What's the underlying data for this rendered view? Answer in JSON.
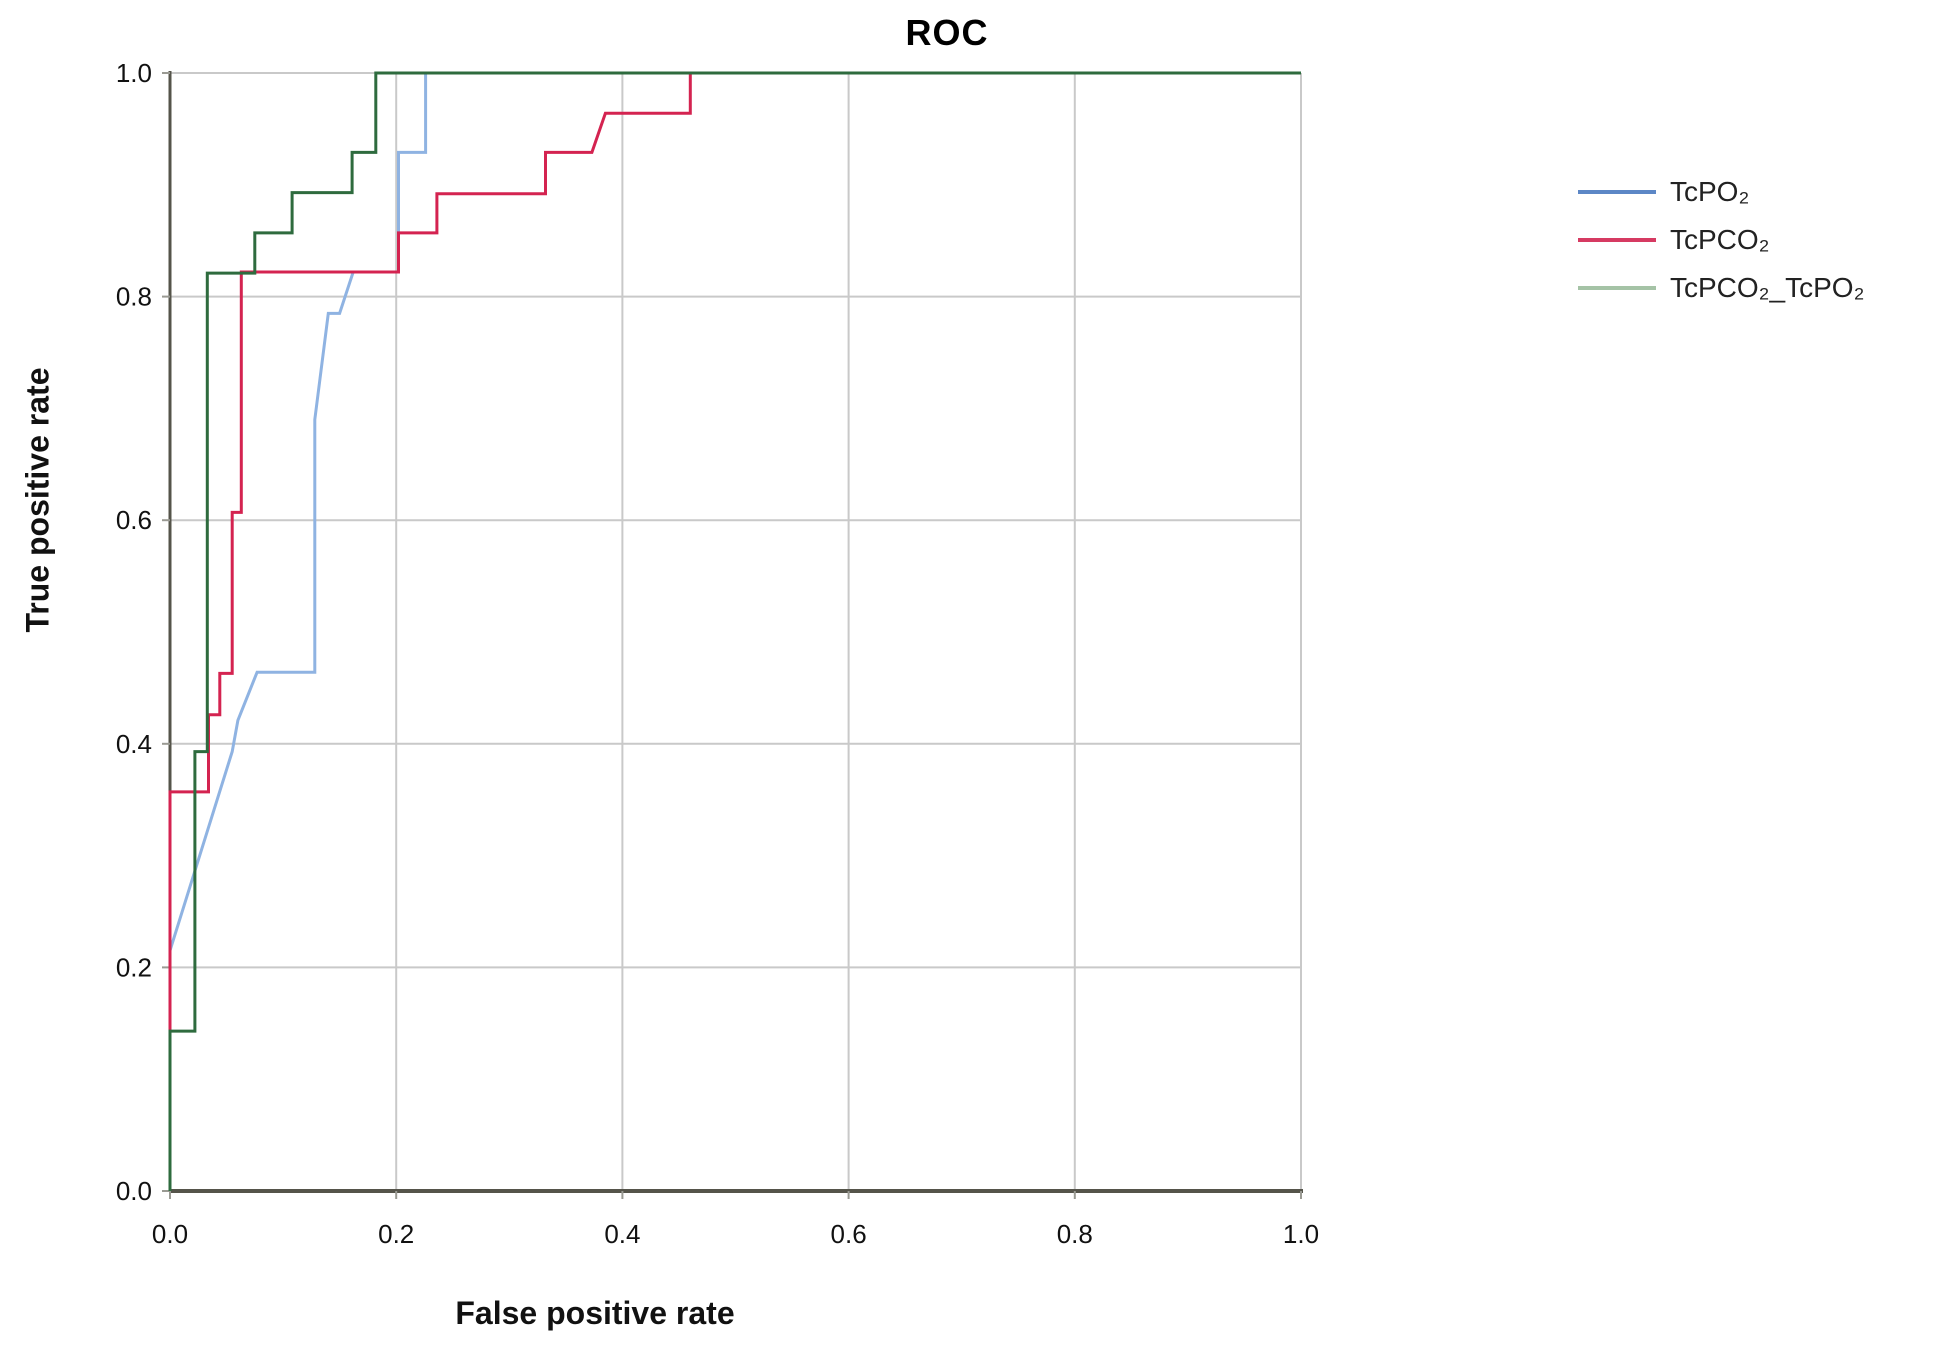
{
  "chart_data": {
    "type": "line",
    "subtype": "roc-step-curves",
    "title": "ROC",
    "xlabel": "False positive rate",
    "ylabel": "True positive rate",
    "xlim": [
      0.0,
      1.0
    ],
    "ylim": [
      0.0,
      1.0
    ],
    "xticks": [
      "0.0",
      "0.2",
      "0.4",
      "0.6",
      "0.8",
      "1.0"
    ],
    "yticks": [
      "0.0",
      "0.2",
      "0.4",
      "0.6",
      "0.8",
      "1.0"
    ],
    "grid": true,
    "legend_position": "right",
    "axis_color": "#55544a",
    "grid_color": "#c9c9c9",
    "background_color": "#ffffff",
    "series": [
      {
        "name": "TcPO₂",
        "color": "#8fb3e2",
        "legend_color": "#5c87c6",
        "points": [
          [
            0.0,
            0.0
          ],
          [
            0.0,
            0.215
          ],
          [
            0.055,
            0.393
          ],
          [
            0.06,
            0.421
          ],
          [
            0.077,
            0.464
          ],
          [
            0.128,
            0.464
          ],
          [
            0.128,
            0.69
          ],
          [
            0.14,
            0.785
          ],
          [
            0.15,
            0.785
          ],
          [
            0.162,
            0.822
          ],
          [
            0.202,
            0.822
          ],
          [
            0.202,
            0.929
          ],
          [
            0.226,
            0.929
          ],
          [
            0.226,
            1.0
          ],
          [
            1.0,
            1.0
          ]
        ]
      },
      {
        "name": "TcPCO₂",
        "color": "#d42350",
        "legend_color": "#d63a62",
        "points": [
          [
            0.0,
            0.0
          ],
          [
            0.0,
            0.357
          ],
          [
            0.034,
            0.357
          ],
          [
            0.034,
            0.426
          ],
          [
            0.044,
            0.426
          ],
          [
            0.044,
            0.463
          ],
          [
            0.055,
            0.463
          ],
          [
            0.055,
            0.607
          ],
          [
            0.063,
            0.607
          ],
          [
            0.063,
            0.822
          ],
          [
            0.202,
            0.822
          ],
          [
            0.202,
            0.857
          ],
          [
            0.236,
            0.857
          ],
          [
            0.236,
            0.892
          ],
          [
            0.332,
            0.892
          ],
          [
            0.332,
            0.929
          ],
          [
            0.373,
            0.929
          ],
          [
            0.385,
            0.964
          ],
          [
            0.46,
            0.964
          ],
          [
            0.46,
            1.0
          ],
          [
            1.0,
            1.0
          ]
        ]
      },
      {
        "name": "TcPCO₂_TcPO₂",
        "color": "#2e6b3e",
        "legend_color": "#a5c3a6",
        "points": [
          [
            0.0,
            0.0
          ],
          [
            0.0,
            0.143
          ],
          [
            0.022,
            0.143
          ],
          [
            0.022,
            0.393
          ],
          [
            0.033,
            0.393
          ],
          [
            0.033,
            0.821
          ],
          [
            0.075,
            0.821
          ],
          [
            0.075,
            0.857
          ],
          [
            0.108,
            0.857
          ],
          [
            0.108,
            0.893
          ],
          [
            0.161,
            0.893
          ],
          [
            0.161,
            0.929
          ],
          [
            0.182,
            0.929
          ],
          [
            0.182,
            1.0
          ],
          [
            1.0,
            1.0
          ]
        ]
      }
    ]
  }
}
